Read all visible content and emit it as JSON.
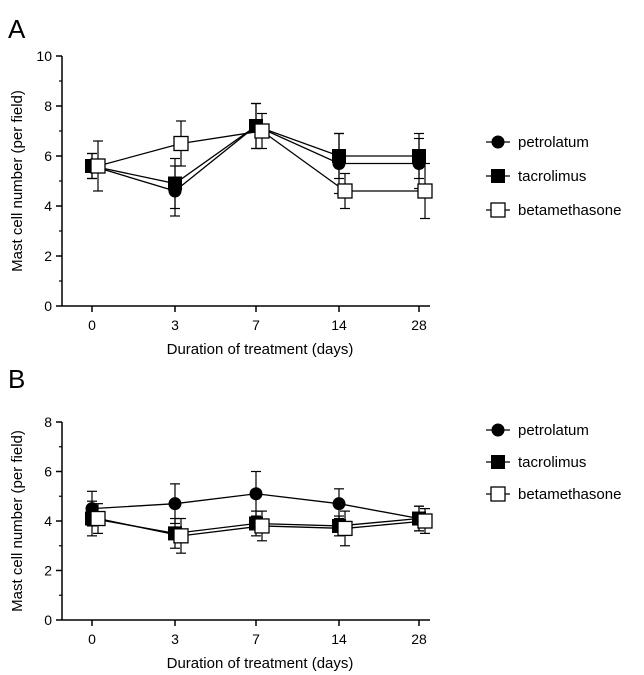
{
  "panels": [
    {
      "letter": "A"
    },
    {
      "letter": "B"
    }
  ],
  "chart_data": [
    {
      "type": "line",
      "panel": "A",
      "xlabel": "Duration of treatment (days)",
      "ylabel": "Mast cell number (per field)",
      "categories": [
        "0",
        "3",
        "7",
        "14",
        "28"
      ],
      "ylim": [
        0,
        10
      ],
      "yticks": [
        0,
        2,
        4,
        6,
        8,
        10
      ],
      "series": [
        {
          "name": "petrolatum",
          "marker": "filled-circle",
          "values": [
            5.6,
            4.6,
            7.2,
            5.7,
            5.7
          ],
          "errors": [
            0.5,
            1.0,
            0.9,
            1.2,
            1.0
          ]
        },
        {
          "name": "tacrolimus",
          "marker": "filled-square",
          "values": [
            5.6,
            4.9,
            7.2,
            6.0,
            6.0
          ],
          "errors": [
            0.5,
            1.0,
            0.9,
            0.9,
            0.9
          ]
        },
        {
          "name": "betamethasone",
          "marker": "open-square",
          "values": [
            5.6,
            6.5,
            7.0,
            4.6,
            4.6
          ],
          "errors": [
            1.0,
            0.9,
            0.7,
            0.7,
            1.1
          ]
        }
      ],
      "legend": "right"
    },
    {
      "type": "line",
      "panel": "B",
      "xlabel": "Duration of treatment (days)",
      "ylabel": "Mast cell number (per field)",
      "categories": [
        "0",
        "3",
        "7",
        "14",
        "28"
      ],
      "ylim": [
        0,
        8
      ],
      "yticks": [
        0,
        2,
        4,
        6,
        8
      ],
      "series": [
        {
          "name": "petrolatum",
          "marker": "filled-circle",
          "values": [
            4.5,
            4.7,
            5.1,
            4.7,
            4.1
          ],
          "errors": [
            0.7,
            0.8,
            0.9,
            0.6,
            0.5
          ]
        },
        {
          "name": "tacrolimus",
          "marker": "filled-square",
          "values": [
            4.1,
            3.5,
            3.9,
            3.8,
            4.1
          ],
          "errors": [
            0.7,
            0.6,
            0.5,
            0.4,
            0.5
          ]
        },
        {
          "name": "betamethasone",
          "marker": "open-square",
          "values": [
            4.1,
            3.4,
            3.8,
            3.7,
            4.0
          ],
          "errors": [
            0.6,
            0.7,
            0.6,
            0.7,
            0.5
          ]
        }
      ],
      "legend": "right"
    }
  ]
}
